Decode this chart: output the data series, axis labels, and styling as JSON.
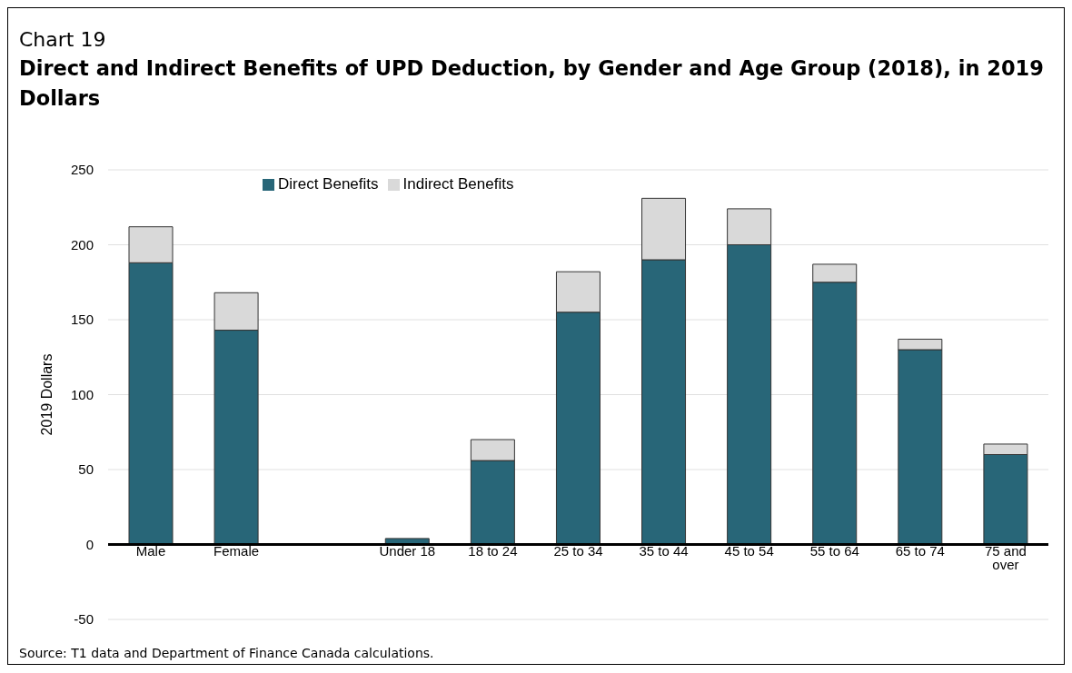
{
  "chart_data": {
    "type": "bar",
    "title": "Direct and Indirect Benefits of UPD Deduction, by Gender and Age Group (2018), in 2019 Dollars",
    "subtitle": "Chart 19",
    "ylabel": "2019 Dollars",
    "annotations": [
      "Source: T1 data and Department of Finance Canada calculations."
    ],
    "categories": [
      "Male",
      "Female",
      null,
      "Under 18",
      "18 to 24",
      "25 to 34",
      "35 to 44",
      "45 to 54",
      "55 to 64",
      "65 to 74",
      "75 and over"
    ],
    "series": [
      {
        "name": "Direct Benefits",
        "color": "#286678",
        "values": [
          188,
          143,
          null,
          4,
          56,
          155,
          190,
          200,
          175,
          130,
          60
        ]
      },
      {
        "name": "Indirect Benefits",
        "color": "#d9d9d9",
        "values": [
          24,
          25,
          null,
          0,
          14,
          27,
          41,
          24,
          12,
          7,
          7
        ]
      }
    ],
    "stacked": true,
    "ylim": [
      -50,
      250
    ],
    "yticks": [
      -50,
      0,
      50,
      100,
      150,
      200,
      250
    ],
    "grid": "y",
    "legend": "top"
  }
}
